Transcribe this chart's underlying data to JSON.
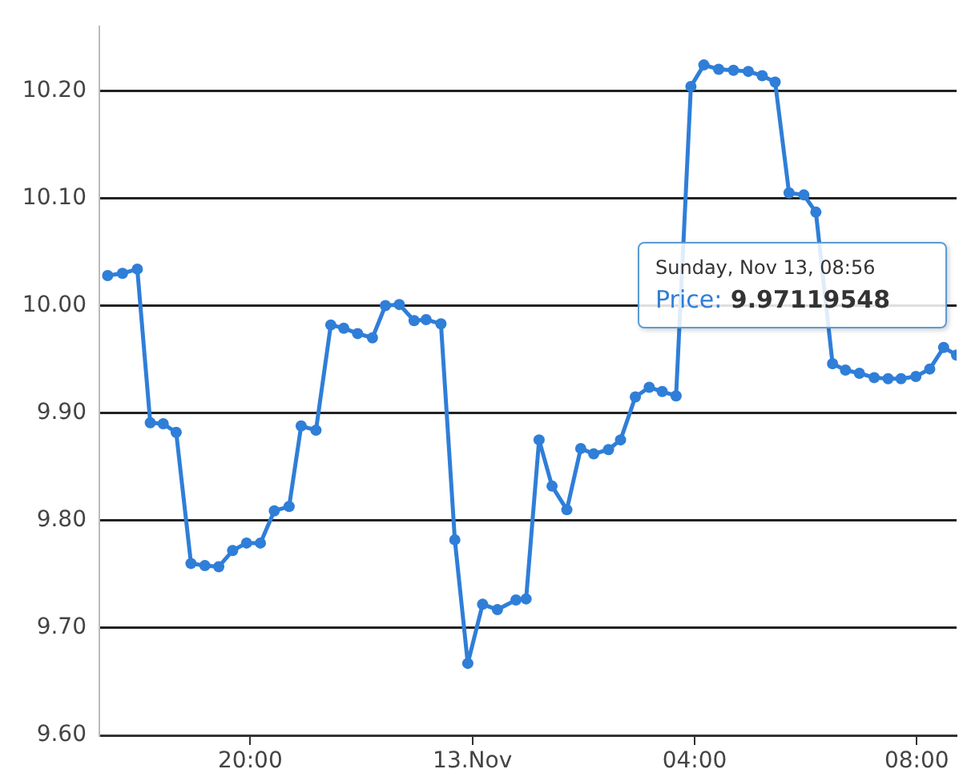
{
  "chart_data": {
    "type": "line",
    "x": [
      "--11-12T17:26",
      "--11-12T17:42",
      "--11-12T17:58",
      "--11-12T18:12",
      "--11-12T18:26",
      "--11-12T18:40",
      "--11-12T18:56",
      "--11-12T19:11",
      "--11-12T19:26",
      "--11-12T19:41",
      "--11-12T19:56",
      "--11-12T20:11",
      "--11-12T20:26",
      "--11-12T20:42",
      "--11-12T20:55",
      "--11-12T21:11",
      "--11-12T21:27",
      "--11-12T21:41",
      "--11-12T21:56",
      "--11-12T22:12",
      "--11-12T22:26",
      "--11-12T22:41",
      "--11-12T22:57",
      "--11-12T23:10",
      "--11-12T23:26",
      "--11-12T23:41",
      "--11-12T23:55",
      "--11-13T00:11",
      "--11-13T00:27",
      "--11-13T00:47",
      "--11-13T00:58",
      "--11-13T01:12",
      "--11-13T01:26",
      "--11-13T01:42",
      "--11-13T01:57",
      "--11-13T02:11",
      "--11-13T02:27",
      "--11-13T02:40",
      "--11-13T02:56",
      "--11-13T03:11",
      "--11-13T03:25",
      "--11-13T03:40",
      "--11-13T03:56",
      "--11-13T04:10",
      "--11-13T04:26",
      "--11-13T04:42",
      "--11-13T04:58",
      "--11-13T05:13",
      "--11-13T05:27",
      "--11-13T05:42",
      "--11-13T05:58",
      "--11-13T06:11",
      "--11-13T06:13",
      "--11-13T06:29",
      "--11-13T06:43",
      "--11-13T06:58",
      "--11-13T07:14",
      "--11-13T07:29",
      "--11-13T07:43",
      "--11-13T07:59",
      "--11-13T08:14",
      "--11-13T08:29",
      "--11-13T08:43"
    ],
    "series": [
      {
        "color": "#2f7ed8",
        "values": [
          10.028,
          10.03,
          10.034,
          9.891,
          9.89,
          9.882,
          9.76,
          9.758,
          9.757,
          9.772,
          9.779,
          9.779,
          9.809,
          9.813,
          9.888,
          9.884,
          9.982,
          9.979,
          9.974,
          9.97,
          10.0,
          10.001,
          9.986,
          9.987,
          9.983,
          9.782,
          9.667,
          9.722,
          9.717,
          9.726,
          9.727,
          9.875,
          9.832,
          9.81,
          9.867,
          9.862,
          9.866,
          9.875,
          9.915,
          9.924,
          9.92,
          9.916,
          10.204,
          10.224,
          10.22,
          10.219,
          10.218,
          10.214,
          10.208,
          10.105,
          10.103,
          10.087,
          null,
          9.946,
          9.94,
          9.937,
          9.933,
          9.932,
          9.932,
          9.934,
          9.941,
          9.961,
          9.954
        ]
      }
    ],
    "xlim": [
      "--11-12T17:17",
      "--11-13T08:43"
    ],
    "xticks": [
      {
        "value": "--11-12T20:00",
        "label": "20:00"
      },
      {
        "value": "--11-13T00:00",
        "label": "13.Nov"
      },
      {
        "value": "--11-13T04:00",
        "label": "04:00"
      },
      {
        "value": "--11-13T08:00",
        "label": "08:00"
      }
    ],
    "ylim": [
      9.6,
      10.26
    ],
    "yticks": [
      {
        "value": 9.6,
        "label": "9.60"
      },
      {
        "value": 9.7,
        "label": "9.70"
      },
      {
        "value": 9.8,
        "label": "9.80"
      },
      {
        "value": 9.9,
        "label": "9.90"
      },
      {
        "value": 10.0,
        "label": "10.00"
      },
      {
        "value": 10.1,
        "label": "10.10"
      },
      {
        "value": 10.2,
        "label": "10.20"
      }
    ],
    "grid": "y",
    "marker": "circle",
    "line_style": "solid",
    "annotations": [
      "Sunday, Nov 13, 08:56",
      "Price: 9.97119548"
    ]
  }
}
